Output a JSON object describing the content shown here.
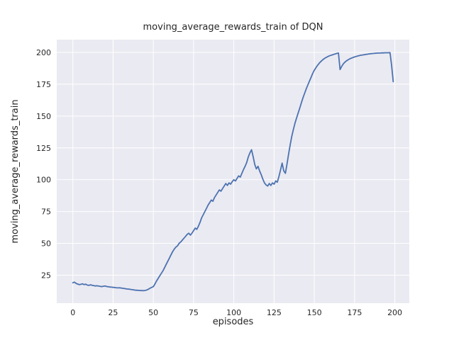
{
  "chart_data": {
    "type": "line",
    "title": "moving_average_rewards_train of DQN",
    "xlabel": "episodes",
    "ylabel": "moving_average_rewards_train",
    "xlim": [
      -10,
      209
    ],
    "ylim": [
      3,
      210
    ],
    "xticks": [
      0,
      25,
      50,
      75,
      100,
      125,
      150,
      175,
      200
    ],
    "yticks": [
      25,
      50,
      75,
      100,
      125,
      150,
      175,
      200
    ],
    "grid": true,
    "legend_position": "none",
    "plot_bg": "#eaeaf2",
    "grid_color": "#ffffff",
    "series": [
      {
        "name": "moving_average_rewards_train",
        "color": "#4c72b0",
        "points": [
          [
            0,
            19
          ],
          [
            1,
            19.5
          ],
          [
            2,
            18.5
          ],
          [
            3,
            18
          ],
          [
            4,
            17.5
          ],
          [
            5,
            17.8
          ],
          [
            6,
            18.2
          ],
          [
            7,
            17.6
          ],
          [
            8,
            17.9
          ],
          [
            9,
            17.2
          ],
          [
            10,
            17
          ],
          [
            11,
            17.4
          ],
          [
            12,
            17.1
          ],
          [
            13,
            16.8
          ],
          [
            14,
            16.5
          ],
          [
            15,
            16.7
          ],
          [
            16,
            16.4
          ],
          [
            17,
            16.2
          ],
          [
            18,
            16
          ],
          [
            19,
            16.3
          ],
          [
            20,
            16.5
          ],
          [
            21,
            16.1
          ],
          [
            22,
            15.9
          ],
          [
            23,
            15.7
          ],
          [
            24,
            15.6
          ],
          [
            25,
            15.4
          ],
          [
            26,
            15.3
          ],
          [
            27,
            15.1
          ],
          [
            28,
            15
          ],
          [
            29,
            15.1
          ],
          [
            30,
            14.9
          ],
          [
            31,
            14.7
          ],
          [
            32,
            14.5
          ],
          [
            33,
            14.3
          ],
          [
            34,
            14.1
          ],
          [
            35,
            14
          ],
          [
            36,
            13.8
          ],
          [
            37,
            13.6
          ],
          [
            38,
            13.4
          ],
          [
            39,
            13.2
          ],
          [
            40,
            13.1
          ],
          [
            41,
            13
          ],
          [
            42,
            12.9
          ],
          [
            43,
            12.9
          ],
          [
            44,
            12.8
          ],
          [
            45,
            13
          ],
          [
            46,
            13.4
          ],
          [
            47,
            14
          ],
          [
            48,
            14.8
          ],
          [
            49,
            15.4
          ],
          [
            50,
            16
          ],
          [
            51,
            18
          ],
          [
            52,
            20.5
          ],
          [
            53,
            22.5
          ],
          [
            54,
            24.5
          ],
          [
            55,
            26.5
          ],
          [
            56,
            28.5
          ],
          [
            57,
            31
          ],
          [
            58,
            33.5
          ],
          [
            59,
            36
          ],
          [
            60,
            38.5
          ],
          [
            61,
            41
          ],
          [
            62,
            43.5
          ],
          [
            63,
            45.5
          ],
          [
            64,
            47
          ],
          [
            65,
            48
          ],
          [
            66,
            50
          ],
          [
            67,
            51
          ],
          [
            68,
            52.5
          ],
          [
            69,
            54
          ],
          [
            70,
            55.5
          ],
          [
            71,
            57
          ],
          [
            72,
            58
          ],
          [
            73,
            56.5
          ],
          [
            74,
            58
          ],
          [
            75,
            60
          ],
          [
            76,
            62
          ],
          [
            77,
            61
          ],
          [
            78,
            63.5
          ],
          [
            79,
            66.5
          ],
          [
            80,
            70
          ],
          [
            81,
            72.5
          ],
          [
            82,
            75
          ],
          [
            83,
            77.5
          ],
          [
            84,
            80
          ],
          [
            85,
            82
          ],
          [
            86,
            84
          ],
          [
            87,
            83
          ],
          [
            88,
            86
          ],
          [
            89,
            88
          ],
          [
            90,
            90
          ],
          [
            91,
            92
          ],
          [
            92,
            91
          ],
          [
            93,
            93
          ],
          [
            94,
            95
          ],
          [
            95,
            97
          ],
          [
            96,
            95.5
          ],
          [
            97,
            97.5
          ],
          [
            98,
            96.5
          ],
          [
            99,
            98.5
          ],
          [
            100,
            100
          ],
          [
            101,
            99
          ],
          [
            102,
            101
          ],
          [
            103,
            103
          ],
          [
            104,
            102
          ],
          [
            105,
            105
          ],
          [
            106,
            108
          ],
          [
            107,
            110.5
          ],
          [
            108,
            113.5
          ],
          [
            109,
            118
          ],
          [
            110,
            121
          ],
          [
            111,
            123.5
          ],
          [
            112,
            118
          ],
          [
            113,
            112
          ],
          [
            114,
            108.5
          ],
          [
            115,
            110.5
          ],
          [
            116,
            107
          ],
          [
            117,
            104
          ],
          [
            118,
            100.5
          ],
          [
            119,
            97.5
          ],
          [
            120,
            96
          ],
          [
            121,
            95
          ],
          [
            122,
            97
          ],
          [
            123,
            95.5
          ],
          [
            124,
            97.5
          ],
          [
            125,
            96.5
          ],
          [
            126,
            99
          ],
          [
            127,
            98
          ],
          [
            128,
            102.5
          ],
          [
            129,
            107.5
          ],
          [
            130,
            113
          ],
          [
            131,
            107
          ],
          [
            132,
            105
          ],
          [
            133,
            112
          ],
          [
            134,
            120
          ],
          [
            135,
            127.5
          ],
          [
            136,
            134
          ],
          [
            137,
            139.5
          ],
          [
            138,
            144.5
          ],
          [
            139,
            148.5
          ],
          [
            140,
            152.5
          ],
          [
            141,
            156.5
          ],
          [
            142,
            160.5
          ],
          [
            143,
            164.5
          ],
          [
            144,
            168
          ],
          [
            145,
            171.5
          ],
          [
            146,
            174.5
          ],
          [
            147,
            177.5
          ],
          [
            148,
            180.5
          ],
          [
            149,
            183.5
          ],
          [
            150,
            186
          ],
          [
            151,
            188
          ],
          [
            152,
            189.8
          ],
          [
            153,
            191.4
          ],
          [
            154,
            192.8
          ],
          [
            155,
            194
          ],
          [
            156,
            195
          ],
          [
            157,
            195.8
          ],
          [
            158,
            196.5
          ],
          [
            159,
            197.1
          ],
          [
            160,
            197.6
          ],
          [
            161,
            198
          ],
          [
            162,
            198.4
          ],
          [
            163,
            198.8
          ],
          [
            164,
            199.2
          ],
          [
            165,
            199.5
          ],
          [
            166,
            186.5
          ],
          [
            167,
            189
          ],
          [
            168,
            191
          ],
          [
            169,
            192.3
          ],
          [
            170,
            193.4
          ],
          [
            171,
            194.2
          ],
          [
            172,
            194.9
          ],
          [
            173,
            195.5
          ],
          [
            174,
            196
          ],
          [
            175,
            196.4
          ],
          [
            176,
            196.8
          ],
          [
            177,
            197.2
          ],
          [
            178,
            197.5
          ],
          [
            179,
            197.8
          ],
          [
            180,
            198
          ],
          [
            181,
            198.2
          ],
          [
            182,
            198.4
          ],
          [
            183,
            198.6
          ],
          [
            184,
            198.8
          ],
          [
            185,
            199
          ],
          [
            186,
            199.1
          ],
          [
            187,
            199.2
          ],
          [
            188,
            199.3
          ],
          [
            189,
            199.4
          ],
          [
            190,
            199.5
          ],
          [
            191,
            199.5
          ],
          [
            192,
            199.6
          ],
          [
            193,
            199.6
          ],
          [
            194,
            199.7
          ],
          [
            195,
            199.7
          ],
          [
            196,
            199.7
          ],
          [
            197,
            199.8
          ],
          [
            198,
            190
          ],
          [
            199,
            177
          ]
        ]
      }
    ]
  }
}
